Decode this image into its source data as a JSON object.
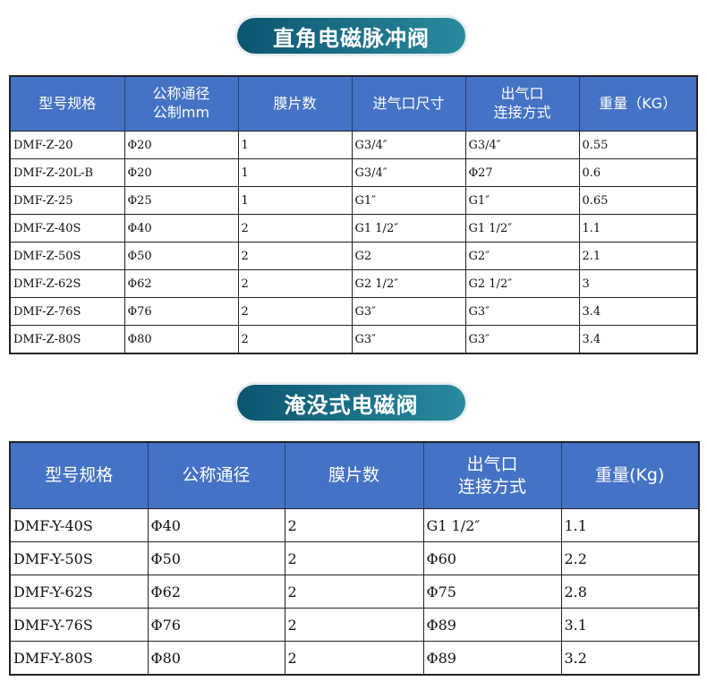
{
  "section1": {
    "title": "直角电磁脉冲阀",
    "headers": [
      "型号规格",
      "公称通径\n公制mm",
      "膜片数",
      "进气口尺寸",
      "出气口\n连接方式",
      "重量（KG）"
    ],
    "rows": [
      [
        "DMF-Z-20",
        "Φ20",
        "1",
        "G3/4″",
        "G3/4″",
        "0.55"
      ],
      [
        "DMF-Z-20L-B",
        "Φ20",
        "1",
        "G3/4″",
        "Φ27",
        "0.6"
      ],
      [
        "DMF-Z-25",
        "Φ25",
        "1",
        "G1″",
        "G1″",
        "0.65"
      ],
      [
        "DMF-Z-40S",
        "Φ40",
        "2",
        "G1 1/2″",
        "G1 1/2″",
        "1.1"
      ],
      [
        "DMF-Z-50S",
        "Φ50",
        "2",
        "G2",
        "G2″",
        "2.1"
      ],
      [
        "DMF-Z-62S",
        "Φ62",
        "2",
        "G2 1/2″",
        "G2 1/2″",
        "3"
      ],
      [
        "DMF-Z-76S",
        "Φ76",
        "2",
        "G3″",
        "G3″",
        "3.4"
      ],
      [
        "DMF-Z-80S",
        "Φ80",
        "2",
        "G3″",
        "G3″",
        "3.4"
      ]
    ]
  },
  "section2": {
    "title": "淹没式电磁阀",
    "headers": [
      "型号规格",
      "公称通径",
      "膜片数",
      "出气口\n连接方式",
      "重量(Kg)"
    ],
    "rows": [
      [
        "DMF-Y-40S",
        "Φ40",
        "2",
        "G1 1/2″",
        "1.1"
      ],
      [
        "DMF-Y-50S",
        "Φ50",
        "2",
        "Φ60",
        "2.2"
      ],
      [
        "DMF-Y-62S",
        "Φ62",
        "2",
        "Φ75",
        "2.8"
      ],
      [
        "DMF-Y-76S",
        "Φ76",
        "2",
        "Φ89",
        "3.1"
      ],
      [
        "DMF-Y-80S",
        "Φ80",
        "2",
        "Φ89",
        "3.2"
      ]
    ]
  },
  "colors": {
    "header_bg": "#4472c4",
    "title_pill_start": "#0c5570",
    "title_pill_end": "#2a8a9e"
  }
}
